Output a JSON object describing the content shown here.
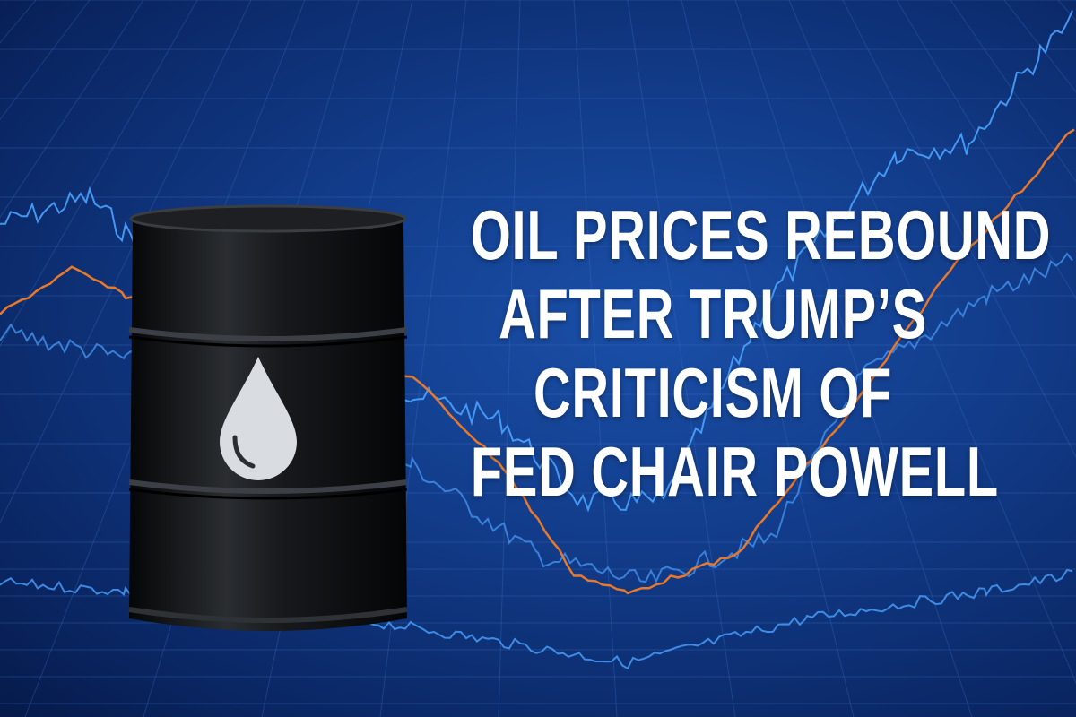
{
  "headline": {
    "lines": [
      "OIL PRICES REBOUND",
      "AFTER TRUMP’S",
      "CRITICISM OF",
      "FED CHAIR POWELL"
    ]
  },
  "colors": {
    "background": "#123c8a",
    "grid": "#3b6fc4",
    "line_blue": "#4aa3ff",
    "line_orange": "#e8782a",
    "barrel": "#111316",
    "drop": "#d9dde2"
  },
  "icons": [
    "oil-barrel-icon",
    "oil-drop-icon"
  ]
}
